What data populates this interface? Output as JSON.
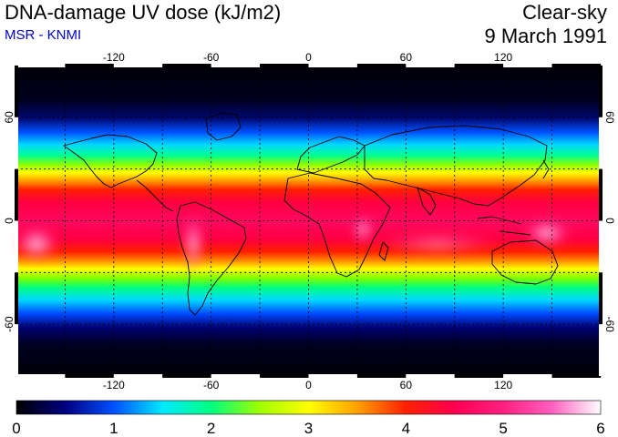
{
  "header": {
    "title": "DNA-damage UV dose (kJ/m2)",
    "subtitle": "MSR - KNMI",
    "condition": "Clear-sky",
    "date": "9 March 1991"
  },
  "map": {
    "projection": "equirectangular",
    "lon_range": [
      -180,
      180
    ],
    "lat_range": [
      -90,
      90
    ],
    "lon_ticks": [
      -120,
      -60,
      0,
      60,
      120
    ],
    "lat_ticks": [
      60,
      0,
      -60
    ],
    "grid_lon": [
      -150,
      -120,
      -90,
      -60,
      -30,
      0,
      30,
      60,
      90,
      120,
      150
    ],
    "grid_lat": [
      -60,
      -30,
      0,
      30,
      60
    ]
  },
  "colorbar": {
    "min": 0,
    "max": 6,
    "tick_labels": [
      "0",
      "1",
      "2",
      "3",
      "4",
      "5",
      "6"
    ],
    "colors": [
      "#000000",
      "#000080",
      "#0050ff",
      "#00e8ff",
      "#00ff80",
      "#a0ff00",
      "#ffff00",
      "#ffa000",
      "#ff2000",
      "#ff0050",
      "#ff2080",
      "#ff60c0",
      "#ffffff"
    ]
  }
}
